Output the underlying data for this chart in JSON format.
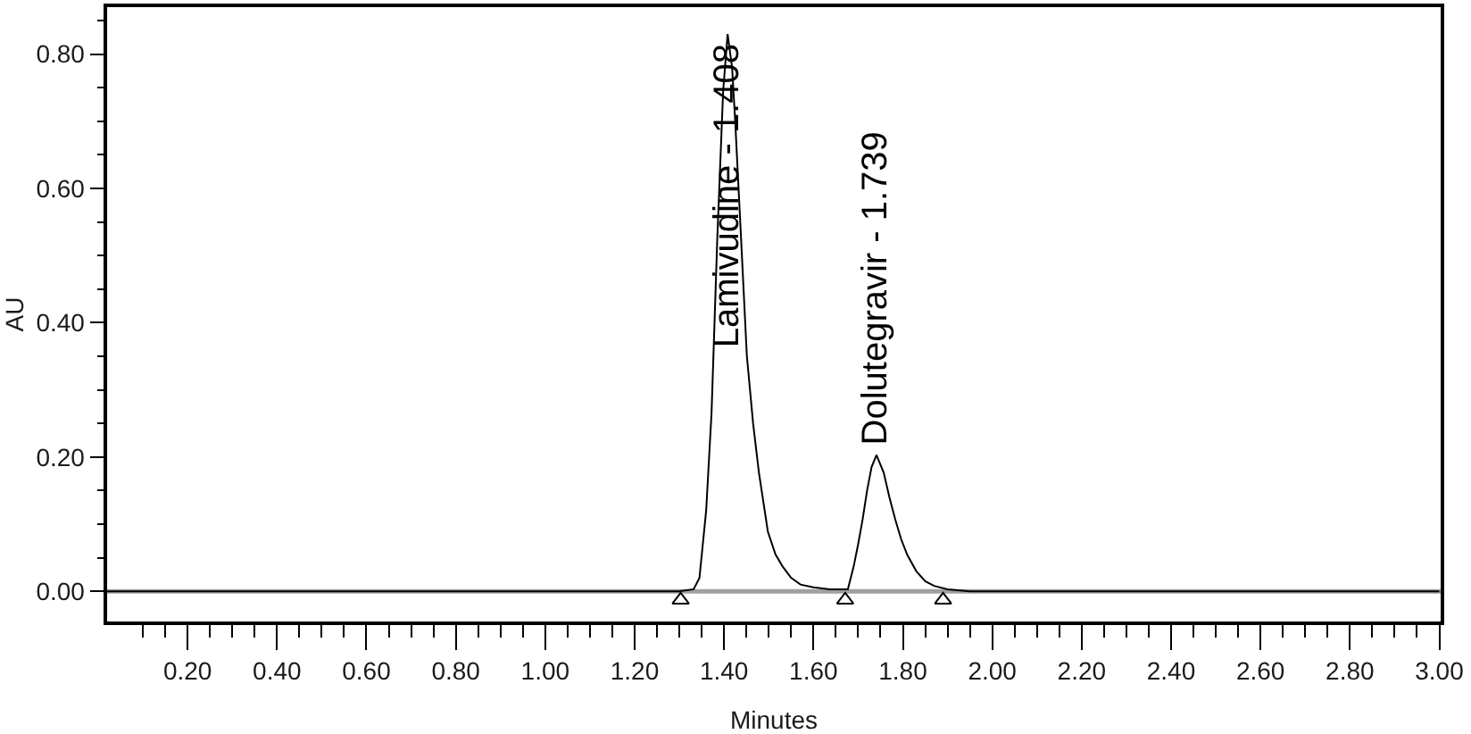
{
  "chart_data": {
    "type": "line",
    "xlabel": "Minutes",
    "ylabel": "AU",
    "xlim": [
      0.02,
      3.003
    ],
    "ylim": [
      -0.045,
      0.87
    ],
    "xticks": [
      {
        "value": 0.1,
        "label": null
      },
      {
        "value": 0.15,
        "label": null
      },
      {
        "value": 0.2,
        "label": "0.20"
      },
      {
        "value": 0.25,
        "label": null
      },
      {
        "value": 0.3,
        "label": null
      },
      {
        "value": 0.35,
        "label": null
      },
      {
        "value": 0.4,
        "label": "0.40"
      },
      {
        "value": 0.45,
        "label": null
      },
      {
        "value": 0.5,
        "label": null
      },
      {
        "value": 0.55,
        "label": null
      },
      {
        "value": 0.6,
        "label": "0.60"
      },
      {
        "value": 0.65,
        "label": null
      },
      {
        "value": 0.7,
        "label": null
      },
      {
        "value": 0.75,
        "label": null
      },
      {
        "value": 0.8,
        "label": "0.80"
      },
      {
        "value": 0.85,
        "label": null
      },
      {
        "value": 0.9,
        "label": null
      },
      {
        "value": 0.95,
        "label": null
      },
      {
        "value": 1.0,
        "label": "1.00"
      },
      {
        "value": 1.05,
        "label": null
      },
      {
        "value": 1.1,
        "label": null
      },
      {
        "value": 1.15,
        "label": null
      },
      {
        "value": 1.2,
        "label": "1.20"
      },
      {
        "value": 1.25,
        "label": null
      },
      {
        "value": 1.3,
        "label": null
      },
      {
        "value": 1.35,
        "label": null
      },
      {
        "value": 1.4,
        "label": "1.40"
      },
      {
        "value": 1.45,
        "label": null
      },
      {
        "value": 1.5,
        "label": null
      },
      {
        "value": 1.55,
        "label": null
      },
      {
        "value": 1.6,
        "label": "1.60"
      },
      {
        "value": 1.65,
        "label": null
      },
      {
        "value": 1.7,
        "label": null
      },
      {
        "value": 1.75,
        "label": null
      },
      {
        "value": 1.8,
        "label": "1.80"
      },
      {
        "value": 1.85,
        "label": null
      },
      {
        "value": 1.9,
        "label": null
      },
      {
        "value": 1.95,
        "label": null
      },
      {
        "value": 2.0,
        "label": "2.00"
      },
      {
        "value": 2.05,
        "label": null
      },
      {
        "value": 2.1,
        "label": null
      },
      {
        "value": 2.15,
        "label": null
      },
      {
        "value": 2.2,
        "label": "2.20"
      },
      {
        "value": 2.25,
        "label": null
      },
      {
        "value": 2.3,
        "label": null
      },
      {
        "value": 2.35,
        "label": null
      },
      {
        "value": 2.4,
        "label": "2.40"
      },
      {
        "value": 2.45,
        "label": null
      },
      {
        "value": 2.5,
        "label": null
      },
      {
        "value": 2.55,
        "label": null
      },
      {
        "value": 2.6,
        "label": "2.60"
      },
      {
        "value": 2.65,
        "label": null
      },
      {
        "value": 2.7,
        "label": null
      },
      {
        "value": 2.75,
        "label": null
      },
      {
        "value": 2.8,
        "label": "2.80"
      },
      {
        "value": 2.85,
        "label": null
      },
      {
        "value": 2.9,
        "label": null
      },
      {
        "value": 2.95,
        "label": null
      },
      {
        "value": 3.0,
        "label": "3.00"
      }
    ],
    "yticks": [
      {
        "value": 0.0,
        "label": "0.00"
      },
      {
        "value": 0.05,
        "label": null
      },
      {
        "value": 0.1,
        "label": null
      },
      {
        "value": 0.15,
        "label": null
      },
      {
        "value": 0.2,
        "label": "0.20"
      },
      {
        "value": 0.25,
        "label": null
      },
      {
        "value": 0.3,
        "label": null
      },
      {
        "value": 0.35,
        "label": null
      },
      {
        "value": 0.4,
        "label": "0.40"
      },
      {
        "value": 0.45,
        "label": null
      },
      {
        "value": 0.5,
        "label": null
      },
      {
        "value": 0.55,
        "label": null
      },
      {
        "value": 0.6,
        "label": "0.60"
      },
      {
        "value": 0.65,
        "label": null
      },
      {
        "value": 0.7,
        "label": null
      },
      {
        "value": 0.75,
        "label": null
      },
      {
        "value": 0.8,
        "label": "0.80"
      },
      {
        "value": 0.85,
        "label": null
      }
    ],
    "series": [
      {
        "color": "#000000",
        "line_style": "solid",
        "x": [
          0.02,
          1.3,
          1.332,
          1.345,
          1.36,
          1.372,
          1.385,
          1.398,
          1.408,
          1.418,
          1.425,
          1.438,
          1.451,
          1.465,
          1.478,
          1.498,
          1.515,
          1.531,
          1.55,
          1.571,
          1.6,
          1.637,
          1.677,
          1.69,
          1.7,
          1.71,
          1.72,
          1.73,
          1.741,
          1.757,
          1.77,
          1.783,
          1.796,
          1.81,
          1.83,
          1.85,
          1.87,
          1.9,
          1.95,
          3.0
        ],
        "values": [
          0,
          0,
          0.003,
          0.02,
          0.12,
          0.265,
          0.527,
          0.745,
          0.83,
          0.78,
          0.7,
          0.527,
          0.351,
          0.25,
          0.177,
          0.089,
          0.055,
          0.037,
          0.02,
          0.01,
          0.006,
          0.003,
          0.003,
          0.037,
          0.07,
          0.107,
          0.15,
          0.185,
          0.203,
          0.177,
          0.14,
          0.107,
          0.078,
          0.054,
          0.03,
          0.015,
          0.008,
          0.003,
          0,
          0
        ]
      },
      {
        "type": "scatter",
        "marker": "triangle",
        "color": "#000000",
        "x": [
          1.303,
          1.671,
          1.89
        ],
        "values": [
          -0.013,
          -0.013,
          -0.013
        ]
      }
    ],
    "ref_lines": [
      {
        "axis": "y",
        "value": 0,
        "color": "#a0a0a0"
      }
    ],
    "annotations": [
      {
        "text": "Lamivudine - 1.408",
        "x": 1.408,
        "y": 0.83
      },
      {
        "text": "Dolutegravir - 1.739",
        "x": 1.739,
        "y": 0.203
      }
    ]
  }
}
